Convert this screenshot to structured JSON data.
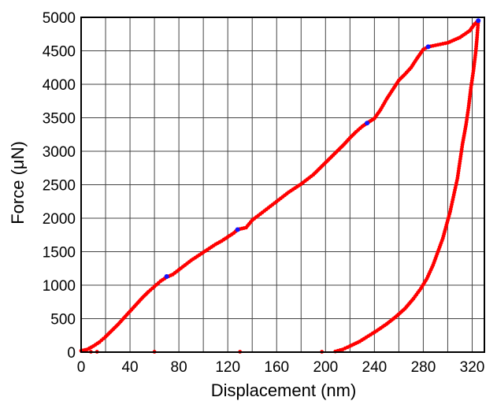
{
  "chart_data": {
    "type": "scatter",
    "title": "",
    "xlabel": "Displacement (nm)",
    "ylabel": "Force (μN)",
    "xlim": [
      0,
      330
    ],
    "ylim": [
      0,
      5000
    ],
    "x_ticks": [
      0,
      40,
      80,
      120,
      160,
      200,
      240,
      280,
      320
    ],
    "y_ticks": [
      0,
      500,
      1000,
      1500,
      2000,
      2500,
      3000,
      3500,
      4000,
      4500,
      5000
    ],
    "x_tick_labels": [
      "0",
      "40",
      "80",
      "120",
      "160",
      "200",
      "240",
      "280",
      "320"
    ],
    "y_tick_labels": [
      "0",
      "500",
      "1000",
      "1500",
      "2000",
      "2500",
      "3000",
      "3500",
      "4000",
      "4500",
      "5000"
    ],
    "grid": true,
    "series": [
      {
        "role": "loading",
        "color": "#ff0000",
        "points": [
          [
            0,
            20
          ],
          [
            5,
            40
          ],
          [
            10,
            90
          ],
          [
            15,
            150
          ],
          [
            20,
            230
          ],
          [
            25,
            320
          ],
          [
            30,
            410
          ],
          [
            35,
            510
          ],
          [
            40,
            610
          ],
          [
            45,
            710
          ],
          [
            50,
            810
          ],
          [
            55,
            900
          ],
          [
            60,
            980
          ],
          [
            65,
            1060
          ],
          [
            70,
            1120
          ],
          [
            75,
            1160
          ],
          [
            80,
            1230
          ],
          [
            85,
            1300
          ],
          [
            90,
            1370
          ],
          [
            95,
            1430
          ],
          [
            100,
            1490
          ],
          [
            105,
            1550
          ],
          [
            110,
            1610
          ],
          [
            115,
            1660
          ],
          [
            120,
            1720
          ],
          [
            125,
            1780
          ],
          [
            128,
            1830
          ],
          [
            135,
            1860
          ],
          [
            140,
            1970
          ],
          [
            145,
            2040
          ],
          [
            150,
            2110
          ],
          [
            155,
            2180
          ],
          [
            160,
            2250
          ],
          [
            165,
            2320
          ],
          [
            170,
            2390
          ],
          [
            175,
            2450
          ],
          [
            180,
            2510
          ],
          [
            185,
            2580
          ],
          [
            190,
            2650
          ],
          [
            195,
            2740
          ],
          [
            200,
            2830
          ],
          [
            205,
            2920
          ],
          [
            210,
            3010
          ],
          [
            215,
            3100
          ],
          [
            220,
            3200
          ],
          [
            225,
            3290
          ],
          [
            230,
            3370
          ],
          [
            234,
            3420
          ],
          [
            240,
            3490
          ],
          [
            245,
            3620
          ],
          [
            250,
            3780
          ],
          [
            255,
            3920
          ],
          [
            260,
            4060
          ],
          [
            265,
            4150
          ],
          [
            270,
            4250
          ],
          [
            275,
            4390
          ],
          [
            280,
            4520
          ],
          [
            284,
            4560
          ],
          [
            300,
            4620
          ],
          [
            310,
            4700
          ],
          [
            318,
            4800
          ],
          [
            322,
            4900
          ],
          [
            325,
            4950
          ]
        ]
      },
      {
        "role": "unloading",
        "color": "#ff0000",
        "points": [
          [
            325,
            4950
          ],
          [
            324,
            4700
          ],
          [
            323,
            4500
          ],
          [
            321,
            4200
          ],
          [
            319,
            3950
          ],
          [
            317,
            3650
          ],
          [
            315,
            3400
          ],
          [
            312,
            3100
          ],
          [
            310,
            2850
          ],
          [
            308,
            2600
          ],
          [
            305,
            2350
          ],
          [
            302,
            2100
          ],
          [
            299,
            1900
          ],
          [
            296,
            1700
          ],
          [
            292,
            1500
          ],
          [
            288,
            1300
          ],
          [
            283,
            1100
          ],
          [
            278,
            950
          ],
          [
            272,
            800
          ],
          [
            265,
            650
          ],
          [
            257,
            520
          ],
          [
            250,
            420
          ],
          [
            242,
            320
          ],
          [
            235,
            240
          ],
          [
            228,
            160
          ],
          [
            220,
            90
          ],
          [
            214,
            40
          ],
          [
            208,
            10
          ]
        ]
      },
      {
        "role": "baseline-points",
        "color": "#ff0000",
        "points": [
          [
            8,
            5
          ],
          [
            13,
            5
          ],
          [
            60,
            5
          ],
          [
            130,
            5
          ],
          [
            197,
            5
          ]
        ]
      },
      {
        "role": "markers",
        "color": "#1414ff",
        "points": [
          [
            70,
            1130
          ],
          [
            128,
            1830
          ],
          [
            234,
            3420
          ],
          [
            284,
            4560
          ],
          [
            325,
            4950
          ]
        ]
      }
    ]
  }
}
